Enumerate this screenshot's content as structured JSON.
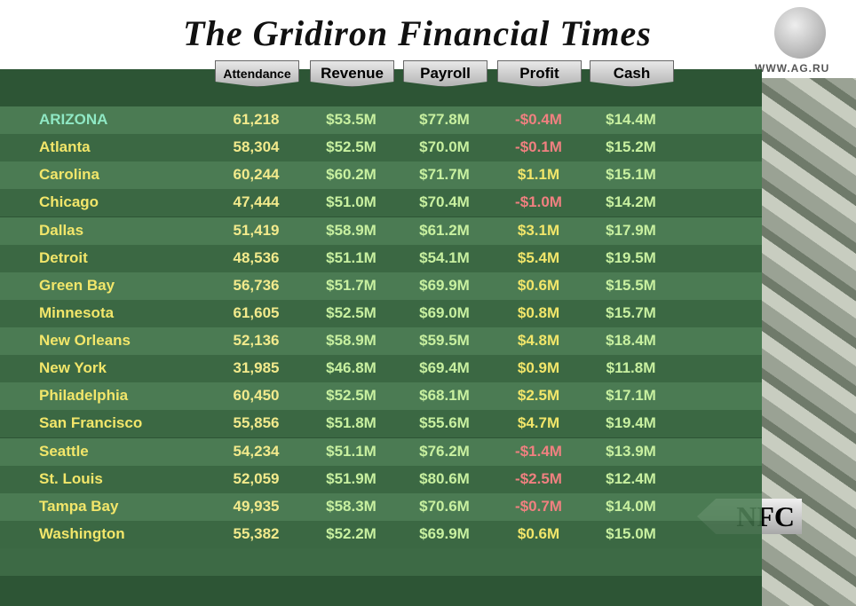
{
  "header": {
    "title": "The Gridiron Financial Times",
    "watermark": "WWW.AG.RU"
  },
  "table": {
    "columns": [
      "Attendance",
      "Revenue",
      "Payroll",
      "Profit",
      "Cash"
    ],
    "rows": [
      [
        "ARIZONA",
        "61,218",
        "$53.5M",
        "$77.8M",
        "-$0.4M",
        "$14.4M"
      ],
      [
        "Atlanta",
        "58,304",
        "$52.5M",
        "$70.0M",
        "-$0.1M",
        "$15.2M"
      ],
      [
        "Carolina",
        "60,244",
        "$60.2M",
        "$71.7M",
        "$1.1M",
        "$15.1M"
      ],
      [
        "Chicago",
        "47,444",
        "$51.0M",
        "$70.4M",
        "-$1.0M",
        "$14.2M"
      ],
      [
        "Dallas",
        "51,419",
        "$58.9M",
        "$61.2M",
        "$3.1M",
        "$17.9M"
      ],
      [
        "Detroit",
        "48,536",
        "$51.1M",
        "$54.1M",
        "$5.4M",
        "$19.5M"
      ],
      [
        "Green Bay",
        "56,736",
        "$51.7M",
        "$69.9M",
        "$0.6M",
        "$15.5M"
      ],
      [
        "Minnesota",
        "61,605",
        "$52.5M",
        "$69.0M",
        "$0.8M",
        "$15.7M"
      ],
      [
        "New Orleans",
        "52,136",
        "$58.9M",
        "$59.5M",
        "$4.8M",
        "$18.4M"
      ],
      [
        "New York",
        "31,985",
        "$46.8M",
        "$69.4M",
        "$0.9M",
        "$11.8M"
      ],
      [
        "Philadelphia",
        "60,450",
        "$52.5M",
        "$68.1M",
        "$2.5M",
        "$17.1M"
      ],
      [
        "San Francisco",
        "55,856",
        "$51.8M",
        "$55.6M",
        "$4.7M",
        "$19.4M"
      ],
      [
        "Seattle",
        "54,234",
        "$51.1M",
        "$76.2M",
        "-$1.4M",
        "$13.9M"
      ],
      [
        "St. Louis",
        "52,059",
        "$51.9M",
        "$80.6M",
        "-$2.5M",
        "$12.4M"
      ],
      [
        "Tampa Bay",
        "49,935",
        "$58.3M",
        "$70.6M",
        "-$0.7M",
        "$14.0M"
      ],
      [
        "Washington",
        "55,382",
        "$52.2M",
        "$69.9M",
        "$0.6M",
        "$15.0M"
      ]
    ]
  },
  "nav": {
    "button": "NFC"
  }
}
